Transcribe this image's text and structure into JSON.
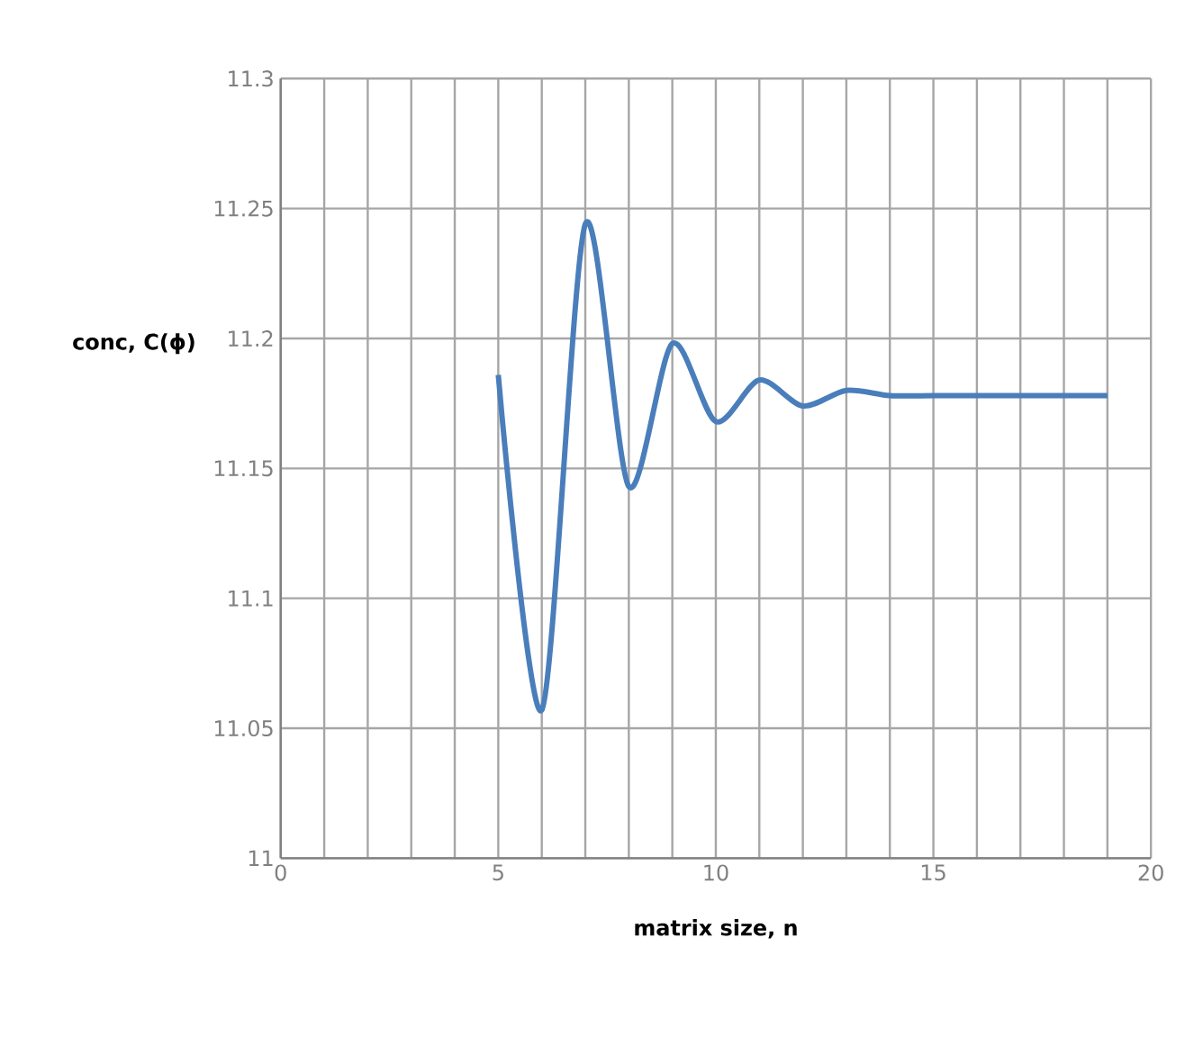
{
  "chart_data": {
    "type": "line",
    "xlabel": "matrix size, n",
    "ylabel": "conc, C(ϕ)",
    "x": [
      5,
      6,
      7,
      8,
      9,
      10,
      11,
      12,
      13,
      14,
      15,
      16,
      17,
      18,
      19
    ],
    "series": [
      {
        "color": "#4a7ebb",
        "values": [
          11.186,
          11.057,
          11.244,
          11.143,
          11.198,
          11.168,
          11.184,
          11.174,
          11.18,
          11.178,
          11.178,
          11.178,
          11.178,
          11.178,
          11.178
        ]
      }
    ],
    "xlim": [
      0,
      20
    ],
    "xticks": [
      0,
      {
        "value": 1,
        "label": null
      },
      {
        "value": 2,
        "label": null
      },
      {
        "value": 3,
        "label": null
      },
      {
        "value": 4,
        "label": null
      },
      5,
      {
        "value": 6,
        "label": null
      },
      {
        "value": 7,
        "label": null
      },
      {
        "value": 8,
        "label": null
      },
      {
        "value": 9,
        "label": null
      },
      10,
      {
        "value": 11,
        "label": null
      },
      {
        "value": 12,
        "label": null
      },
      {
        "value": 13,
        "label": null
      },
      {
        "value": 14,
        "label": null
      },
      15,
      {
        "value": 16,
        "label": null
      },
      {
        "value": 17,
        "label": null
      },
      {
        "value": 18,
        "label": null
      },
      {
        "value": 19,
        "label": null
      },
      20
    ],
    "ylim": [
      11,
      11.3
    ],
    "yticks": [
      11,
      11.05,
      11.1,
      11.15,
      11.2,
      11.25,
      11.3
    ],
    "grid": true,
    "marker": "none",
    "line_style": "solid"
  }
}
